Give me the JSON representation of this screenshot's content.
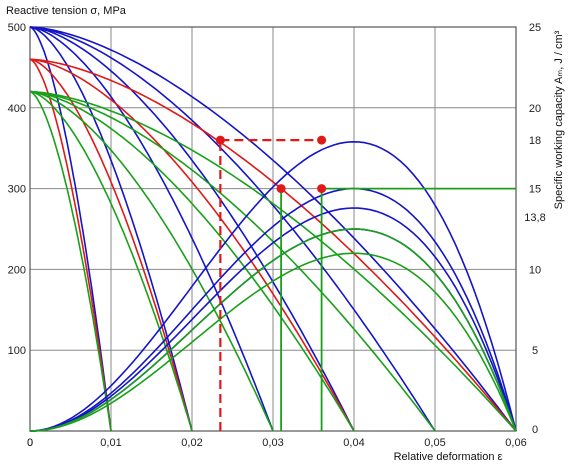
{
  "chart_data": {
    "type": "line",
    "ylabel_left": "Reactive tension σ, MPa",
    "ylabel_right": "Specific working capacity  Aₘ, J / cm³",
    "xlabel": "Relative deformation ε",
    "xlim": [
      0,
      0.06
    ],
    "ylim_left": [
      0,
      500
    ],
    "ylim_right": [
      0,
      25
    ],
    "grid": true,
    "x_ticks": [
      "0",
      "0,01",
      "0,02",
      "0,03",
      "0,04",
      "0,05",
      "0,06"
    ],
    "y_ticks_left": [
      "100",
      "200",
      "300",
      "400",
      "500"
    ],
    "y_ticks_right": [
      "0",
      "5",
      "10",
      "13,8",
      "15",
      "18",
      "20",
      "25"
    ],
    "colors": {
      "blue": "#1414c8",
      "red": "#e01818",
      "green": "#19a019",
      "grid": "#8a8a8a"
    },
    "series": [
      {
        "color": "blue",
        "kind": "tension",
        "s0": 500,
        "eps_max": 0.01
      },
      {
        "color": "blue",
        "kind": "tension",
        "s0": 500,
        "eps_max": 0.02
      },
      {
        "color": "blue",
        "kind": "tension",
        "s0": 500,
        "eps_max": 0.03
      },
      {
        "color": "blue",
        "kind": "tension",
        "s0": 500,
        "eps_max": 0.04
      },
      {
        "color": "blue",
        "kind": "tension",
        "s0": 500,
        "eps_max": 0.05
      },
      {
        "color": "blue",
        "kind": "tension",
        "s0": 500,
        "eps_max": 0.06
      },
      {
        "color": "red",
        "kind": "tension",
        "s0": 460,
        "eps_max": 0.01
      },
      {
        "color": "red",
        "kind": "tension",
        "s0": 460,
        "eps_max": 0.02
      },
      {
        "color": "red",
        "kind": "tension",
        "s0": 460,
        "eps_max": 0.04
      },
      {
        "color": "red",
        "kind": "tension",
        "s0": 460,
        "eps_max": 0.06
      },
      {
        "color": "green",
        "kind": "tension",
        "s0": 420,
        "eps_max": 0.01
      },
      {
        "color": "green",
        "kind": "tension",
        "s0": 420,
        "eps_max": 0.02
      },
      {
        "color": "green",
        "kind": "tension",
        "s0": 420,
        "eps_max": 0.03
      },
      {
        "color": "green",
        "kind": "tension",
        "s0": 420,
        "eps_max": 0.04
      },
      {
        "color": "green",
        "kind": "tension",
        "s0": 420,
        "eps_max": 0.05
      },
      {
        "color": "green",
        "kind": "tension",
        "s0": 420,
        "eps_max": 0.06
      },
      {
        "color": "blue",
        "kind": "work",
        "peak": 17.9,
        "eps_max": 0.06
      },
      {
        "color": "blue",
        "kind": "work",
        "peak": 15.0,
        "eps_max": 0.06
      },
      {
        "color": "blue",
        "kind": "work",
        "peak": 13.8,
        "eps_max": 0.06
      },
      {
        "color": "blue",
        "kind": "work",
        "peak": 12.5,
        "eps_max": 0.06
      },
      {
        "color": "green",
        "kind": "work",
        "peak": 12.5,
        "eps_max": 0.06
      },
      {
        "color": "green",
        "kind": "work",
        "peak": 11.0,
        "eps_max": 0.06
      }
    ],
    "reference_lines": [
      {
        "color": "green",
        "y": 300,
        "x_from": 0.036,
        "x_to": 0.06
      },
      {
        "color": "green",
        "vertical_x": 0.031,
        "y_from": 0,
        "y_to": 300
      },
      {
        "color": "green",
        "vertical_x": 0.036,
        "y_from": 0,
        "y_to": 300
      },
      {
        "color": "red",
        "dashed": true,
        "vertical_x": 0.0235,
        "y_from": 0,
        "y_to": 360
      },
      {
        "color": "red",
        "dashed": true,
        "y": 360,
        "x_from": 0.0235,
        "x_to": 0.036
      }
    ],
    "markers": [
      {
        "color": "red",
        "x": 0.0235,
        "y": 360
      },
      {
        "color": "red",
        "x": 0.036,
        "y": 360
      },
      {
        "color": "red",
        "x": 0.031,
        "y": 300
      },
      {
        "color": "red",
        "x": 0.036,
        "y": 300
      }
    ]
  }
}
